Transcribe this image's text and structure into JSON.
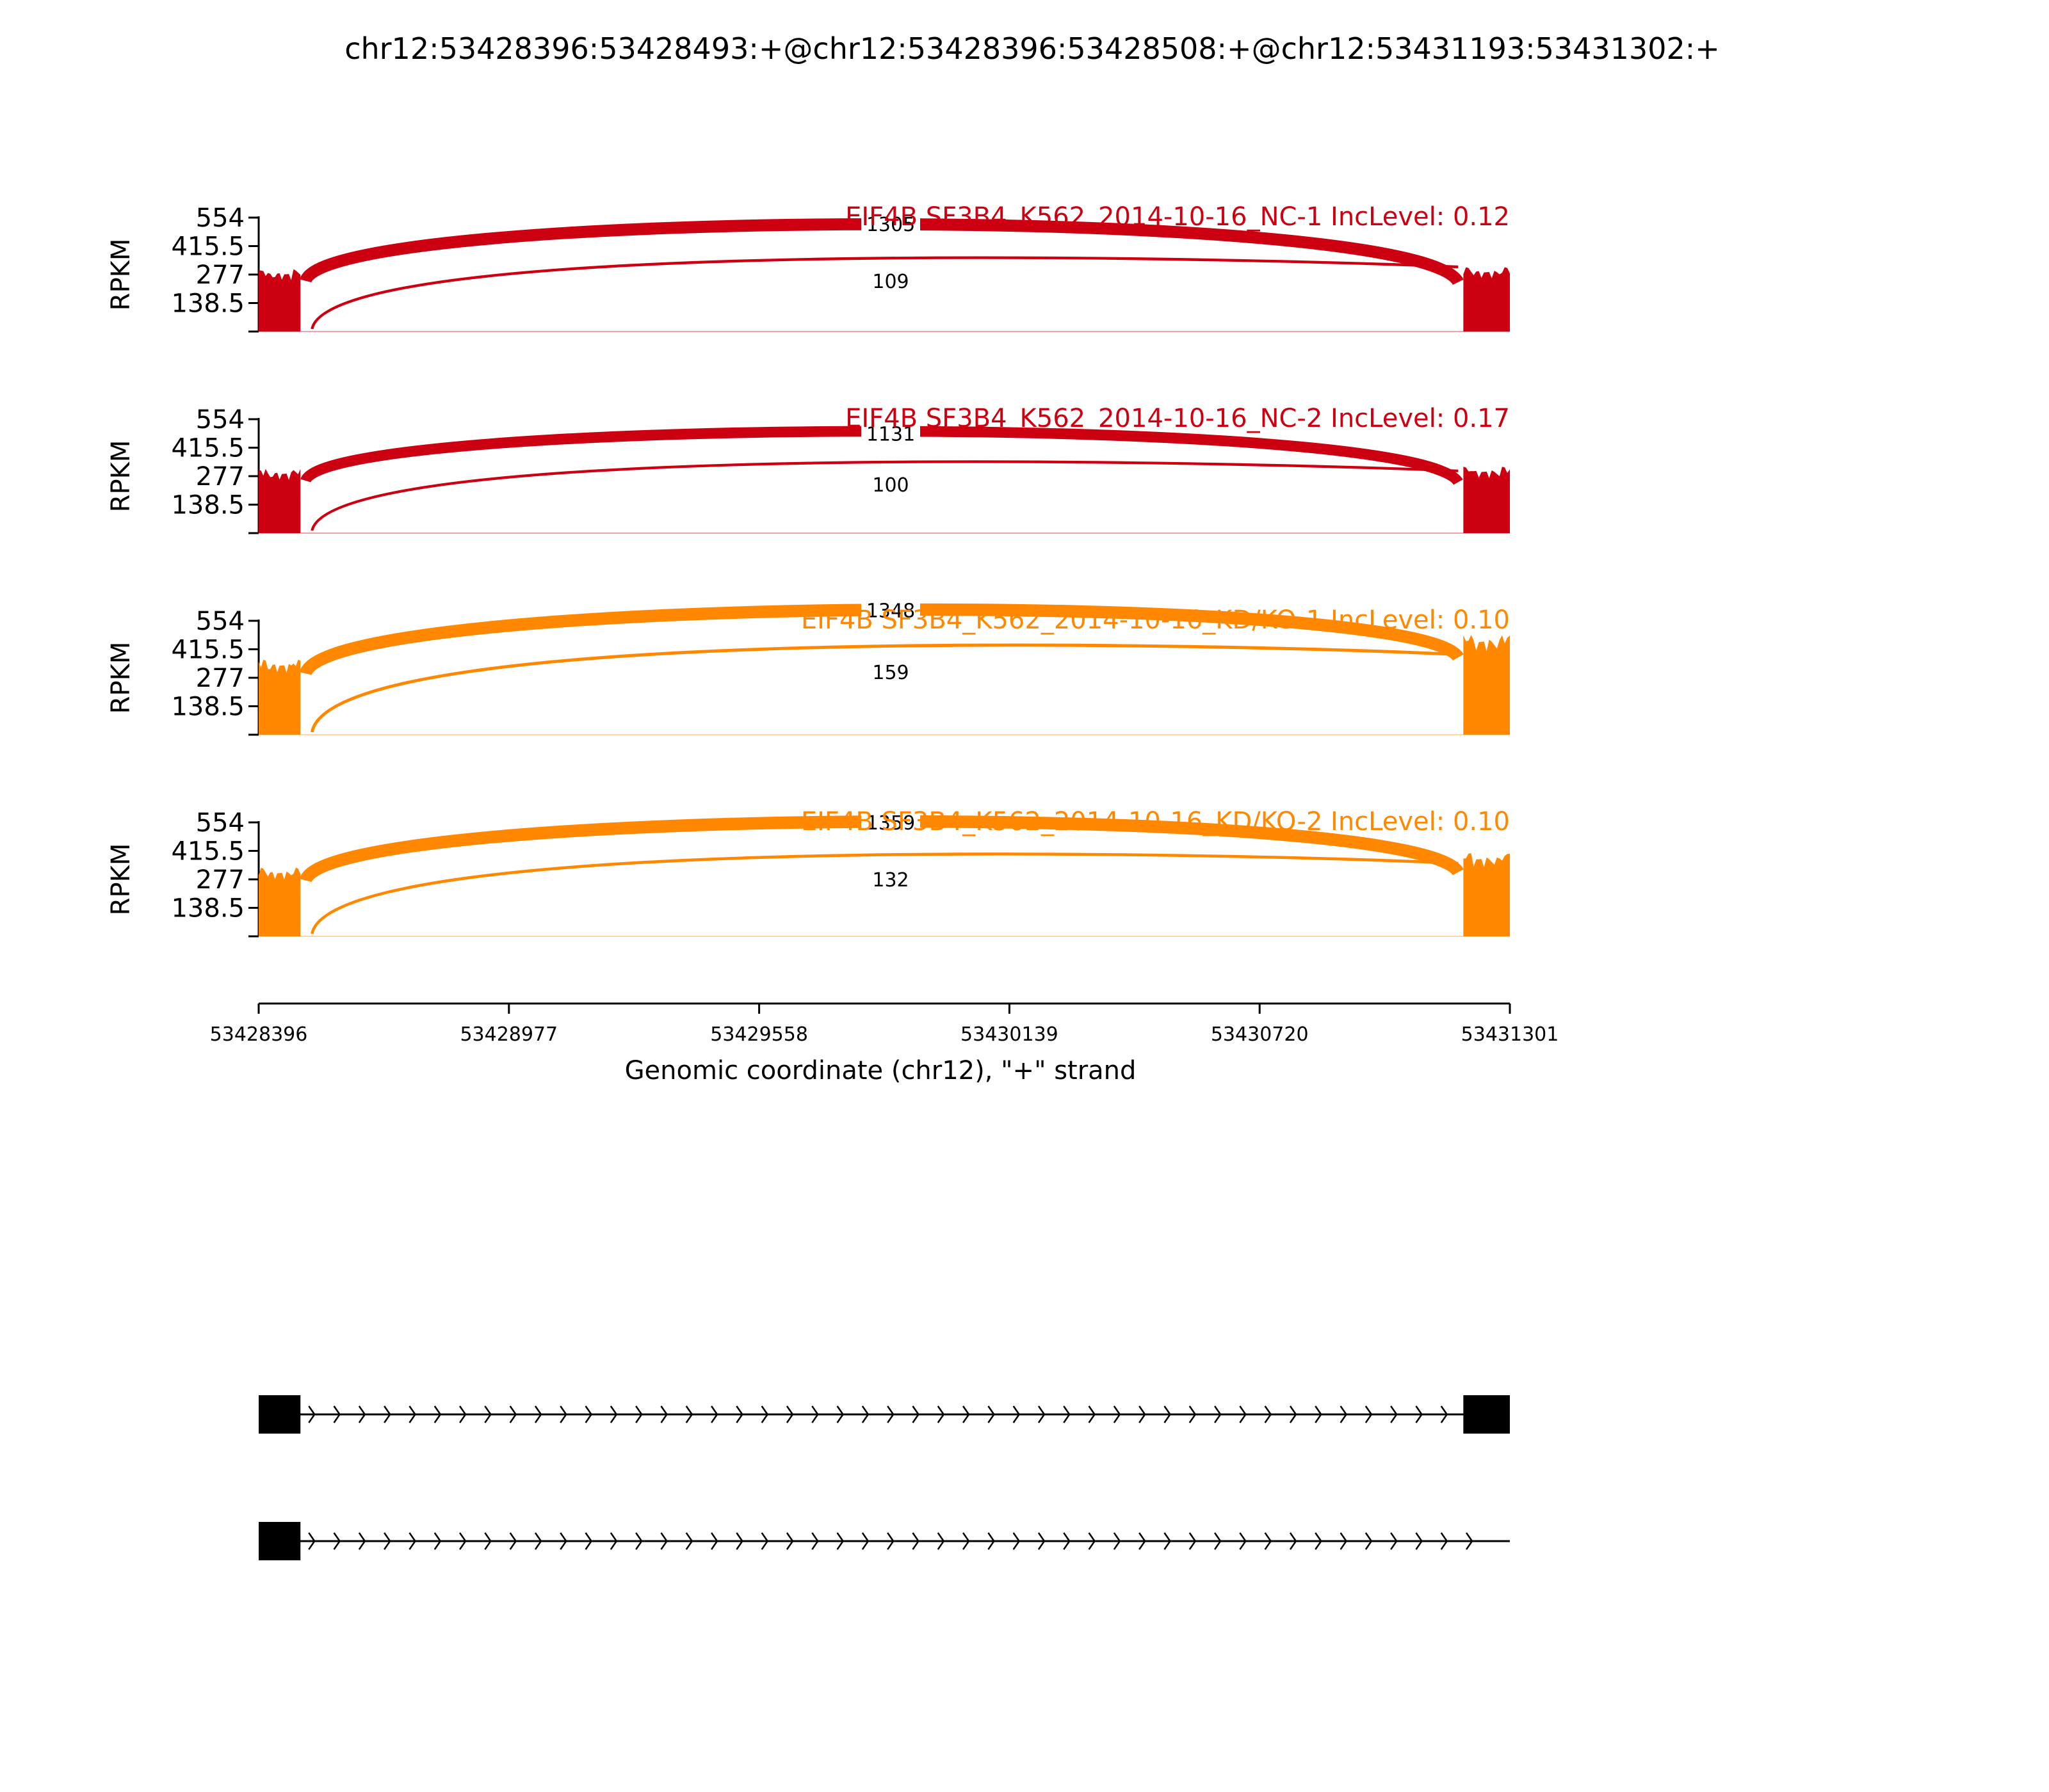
{
  "chart_data": {
    "type": "sashimi",
    "title": "chr12:53428396:53428493:+@chr12:53428396:53428508:+@chr12:53431193:53431302:+",
    "ylabel": "RPKM",
    "yticks": [
      "554",
      "415.5",
      "277",
      "138.5"
    ],
    "ylim": [
      0,
      554
    ],
    "xlim": [
      53428396,
      53431301
    ],
    "xticks": [
      "53428396",
      "53428977",
      "53429558",
      "53430139",
      "53430720",
      "53431301"
    ],
    "xlabel": "Genomic coordinate (chr12), \"+\" strand",
    "exon1": {
      "start": 53428396,
      "end": 53428493
    },
    "exon2": {
      "start": 53431193,
      "end": 53431301
    },
    "colors": {
      "NC": "#cc0010",
      "KD": "#ff8800"
    },
    "series": [
      {
        "name": "EIF4B SF3B4_K562_2014-10-16_NC-1 IncLevel: 0.12",
        "group": "NC",
        "exon1_rpkm": 290,
        "exon2_rpkm": 300,
        "junctions": [
          {
            "label": "1305",
            "count": 1305,
            "start": 53428493,
            "end": 53431193,
            "level": 0.83
          },
          {
            "label": "109",
            "count": 109,
            "start": 53428508,
            "end": 53431193,
            "level": 0.54
          }
        ]
      },
      {
        "name": "EIF4B SF3B4_K562_2014-10-16_NC-2 IncLevel: 0.17",
        "group": "NC",
        "exon1_rpkm": 300,
        "exon2_rpkm": 310,
        "junctions": [
          {
            "label": "1131",
            "count": 1131,
            "start": 53428493,
            "end": 53431193,
            "level": 0.77
          },
          {
            "label": "100",
            "count": 100,
            "start": 53428508,
            "end": 53431193,
            "level": 0.52
          }
        ]
      },
      {
        "name": "EIF4B SF3B4_K562_2014-10-16_KD/KO-1 IncLevel: 0.10",
        "group": "KD",
        "exon1_rpkm": 350,
        "exon2_rpkm": 470,
        "junctions": [
          {
            "label": "1348",
            "count": 1348,
            "start": 53428493,
            "end": 53431193,
            "level": 0.96
          },
          {
            "label": "159",
            "count": 159,
            "start": 53428508,
            "end": 53431193,
            "level": 0.67
          }
        ]
      },
      {
        "name": "EIF4B SF3B4_K562_2014-10-16_KD/KO-2 IncLevel: 0.10",
        "group": "KD",
        "exon1_rpkm": 320,
        "exon2_rpkm": 390,
        "junctions": [
          {
            "label": "1359",
            "count": 1359,
            "start": 53428493,
            "end": 53431193,
            "level": 0.88
          },
          {
            "label": "132",
            "count": 132,
            "start": 53428508,
            "end": 53431193,
            "level": 0.61
          }
        ]
      }
    ],
    "isoforms": [
      {
        "exons": [
          [
            53428396,
            53428493
          ],
          [
            53431193,
            53431301
          ]
        ]
      },
      {
        "exons": [
          [
            53428396,
            53428493
          ]
        ]
      }
    ]
  }
}
